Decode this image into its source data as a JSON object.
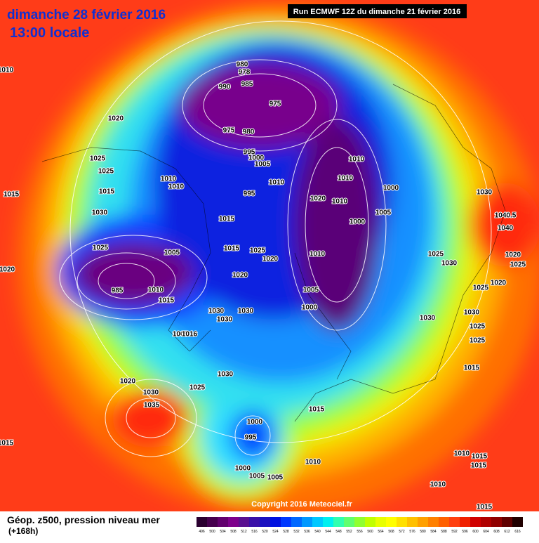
{
  "header": {
    "title": "dimanche 28 février 2016",
    "subtitle": "13:00 locale",
    "run": "Run ECMWF 12Z du dimanche 21 février 2016"
  },
  "footer": {
    "caption": "Géop. z500, pression niveau mer",
    "lead": "(+168h)",
    "copyright": "Copyright 2016 Meteociel.fr"
  },
  "colorbar": {
    "values": [
      496,
      500,
      504,
      508,
      512,
      516,
      520,
      524,
      528,
      532,
      536,
      540,
      544,
      548,
      552,
      556,
      560,
      564,
      568,
      572,
      576,
      580,
      584,
      588,
      592,
      596,
      600,
      604,
      608,
      612,
      616
    ],
    "colors": [
      "#2a0030",
      "#46004e",
      "#62006e",
      "#7e008c",
      "#5a1090",
      "#3a10a8",
      "#1a10c0",
      "#0010e0",
      "#0038ff",
      "#0068ff",
      "#0098ff",
      "#00c8ff",
      "#00f0f0",
      "#30ffb0",
      "#60ff70",
      "#90ff30",
      "#c0ff00",
      "#e8ff00",
      "#ffff00",
      "#ffe000",
      "#ffc000",
      "#ffa000",
      "#ff8000",
      "#ff6000",
      "#ff4010",
      "#f02000",
      "#d00000",
      "#b00000",
      "#900000",
      "#600000",
      "#200000"
    ]
  },
  "isobar_labels": [
    "1010",
    "980",
    "978",
    "985",
    "990",
    "975",
    "975",
    "980",
    "995",
    "1000",
    "1005",
    "1010",
    "1010",
    "1000",
    "1020",
    "1010",
    "1005",
    "1000",
    "995",
    "1010",
    "1020",
    "1025",
    "1025",
    "1015",
    "1015",
    "1010",
    "1010",
    "1030",
    "1015",
    "1025",
    "1005",
    "1015",
    "1025",
    "1020",
    "1010",
    "1020",
    "985",
    "1010",
    "1015",
    "1005",
    "1000",
    "1020",
    "1030",
    "1030",
    "1030",
    "1030",
    "1030",
    "1040.5",
    "1040",
    "1025",
    "1030",
    "1020",
    "1025",
    "1025",
    "1020",
    "1030",
    "1025",
    "1025",
    "1015",
    "1020",
    "1030",
    "1025",
    "1035",
    "1030",
    "1015",
    "1000",
    "995",
    "1010",
    "1000",
    "1005",
    "1005",
    "1010",
    "1015",
    "1015",
    "1010",
    "1015",
    "1015",
    "1005",
    "1016"
  ]
}
